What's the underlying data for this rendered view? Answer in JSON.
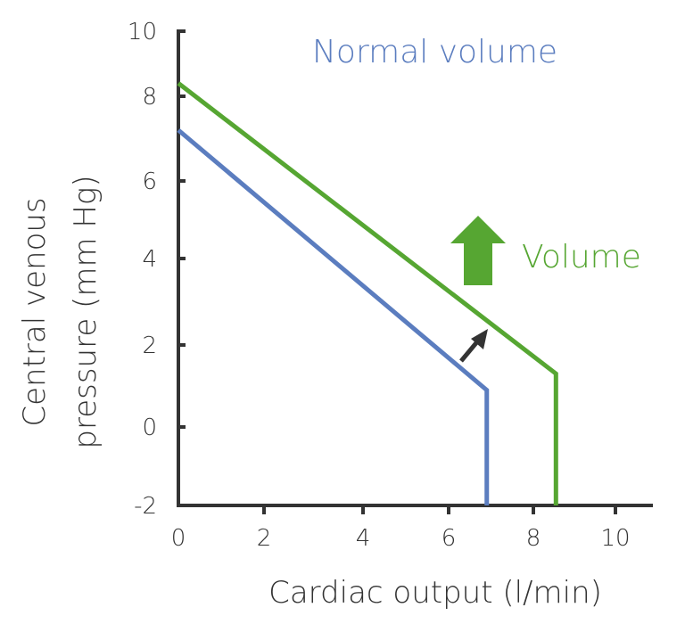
{
  "chart_data": {
    "type": "line",
    "title": "",
    "xlabel": "Cardiac output (l/min)",
    "ylabel": "Central venous pressure (mm Hg)",
    "xlim": [
      0,
      10.8
    ],
    "ylim": [
      -2,
      10
    ],
    "xticks": [
      0,
      2,
      4,
      6,
      8,
      10
    ],
    "yticks": [
      -2,
      0,
      2,
      4,
      6,
      8,
      10
    ],
    "grid": false,
    "series": [
      {
        "name": "Normal volume",
        "color": "#5b7dbf",
        "points": [
          [
            0,
            7.2
          ],
          [
            6.9,
            0.9
          ],
          [
            6.9,
            -2
          ]
        ]
      },
      {
        "name": "Volume",
        "color": "#56a632",
        "points": [
          [
            0,
            8.4
          ],
          [
            8.55,
            1.3
          ],
          [
            8.55,
            -2
          ]
        ]
      }
    ],
    "annotations": [
      {
        "text": "Normal volume",
        "color": "#5b7dbf"
      },
      {
        "text": "Volume",
        "color": "#56a632",
        "icon": "up-arrow-icon"
      },
      {
        "icon": "shift-arrow-icon",
        "color": "#333333",
        "meaning": "curve shift upward"
      }
    ]
  }
}
